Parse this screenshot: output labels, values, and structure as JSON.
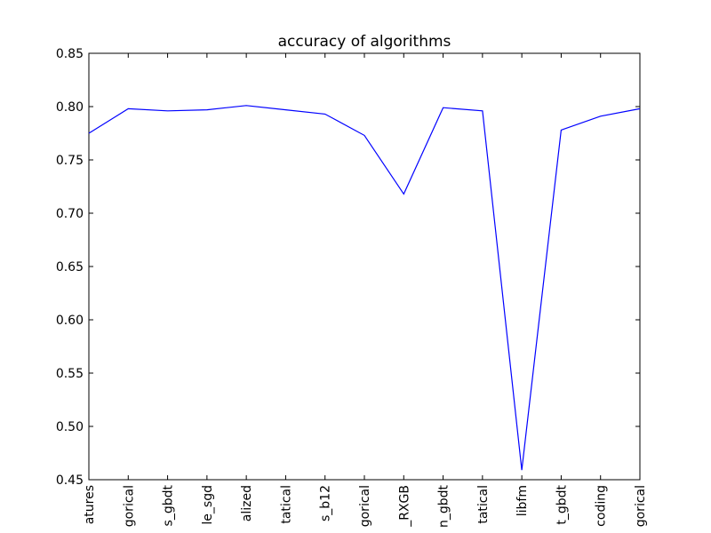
{
  "chart_data": {
    "type": "line",
    "title": "accuracy of algorithms",
    "xlabel": "",
    "ylabel": "",
    "categories": [
      "atures",
      "gorical",
      "s_gbdt",
      "le_sgd",
      "alized",
      "tatical",
      "s_b12",
      "gorical",
      "_RXGB",
      "n_gbdt",
      "tatical",
      "libfm",
      "t_gbdt",
      "coding",
      "gorical"
    ],
    "series": [
      {
        "values": [
          0.775,
          0.798,
          0.796,
          0.797,
          0.801,
          0.797,
          0.793,
          0.773,
          0.718,
          0.799,
          0.796,
          0.459,
          0.778,
          0.791,
          0.798
        ],
        "color": "#0000ff"
      }
    ],
    "ylim": [
      0.45,
      0.85
    ],
    "yticks": [
      "0.85",
      "0.80",
      "0.75",
      "0.70",
      "0.65",
      "0.60",
      "0.55",
      "0.50",
      "0.45"
    ],
    "grid": false,
    "legend": "none"
  }
}
